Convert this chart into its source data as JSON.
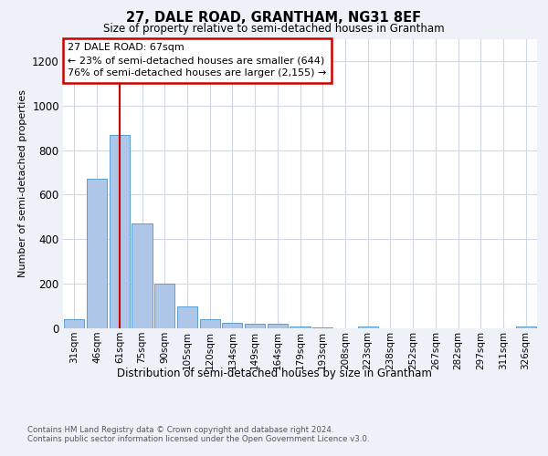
{
  "title1": "27, DALE ROAD, GRANTHAM, NG31 8EF",
  "title2": "Size of property relative to semi-detached houses in Grantham",
  "xlabel": "Distribution of semi-detached houses by size in Grantham",
  "ylabel": "Number of semi-detached properties",
  "categories": [
    "31sqm",
    "46sqm",
    "61sqm",
    "75sqm",
    "90sqm",
    "105sqm",
    "120sqm",
    "134sqm",
    "149sqm",
    "164sqm",
    "179sqm",
    "193sqm",
    "208sqm",
    "223sqm",
    "238sqm",
    "252sqm",
    "267sqm",
    "282sqm",
    "297sqm",
    "311sqm",
    "326sqm"
  ],
  "values": [
    40,
    670,
    870,
    470,
    200,
    100,
    40,
    25,
    20,
    20,
    10,
    5,
    0,
    10,
    0,
    0,
    0,
    0,
    0,
    0,
    10
  ],
  "bar_color": "#aec6e8",
  "bar_edge_color": "#5a9fd4",
  "ylim": [
    0,
    1300
  ],
  "yticks": [
    0,
    200,
    400,
    600,
    800,
    1000,
    1200
  ],
  "red_line_x": 2.0,
  "annotation_text": "27 DALE ROAD: 67sqm\n← 23% of semi-detached houses are smaller (644)\n76% of semi-detached houses are larger (2,155) →",
  "annotation_box_color": "#ffffff",
  "annotation_edge_color": "#cc0000",
  "red_line_color": "#cc0000",
  "footer1": "Contains HM Land Registry data © Crown copyright and database right 2024.",
  "footer2": "Contains public sector information licensed under the Open Government Licence v3.0.",
  "bg_color": "#eef2f8",
  "plot_bg_color": "#ffffff",
  "grid_color": "#d0d8e8"
}
